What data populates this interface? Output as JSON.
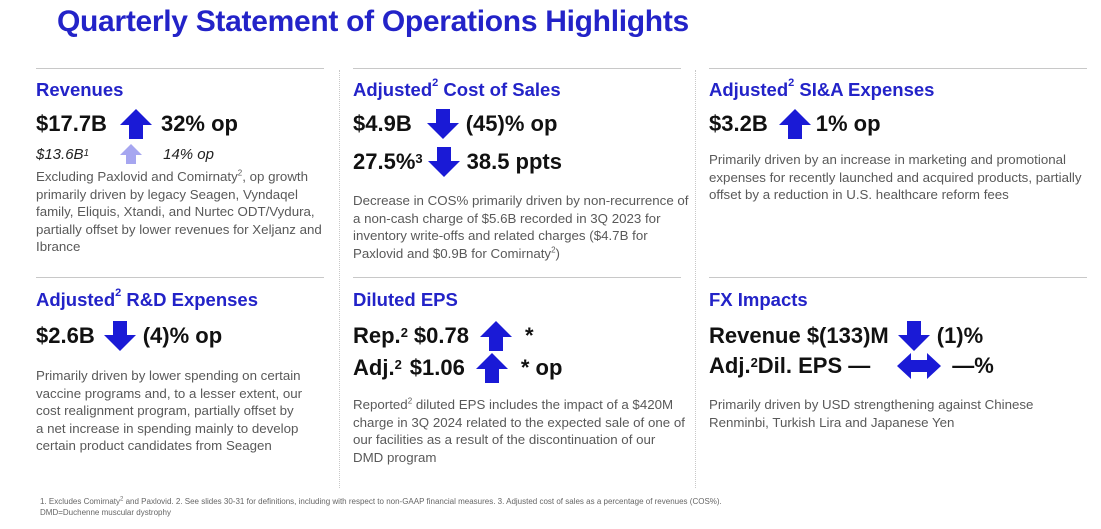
{
  "title": "Quarterly Statement of Operations Highlights",
  "colors": {
    "accent": "#2323c8",
    "arrow": "#1a1ad6",
    "arrow_light": "#a6a6f0"
  },
  "revenues": {
    "heading": "Revenues",
    "value": "$17.7B",
    "change": "32% op",
    "sub_value": "$13.6B",
    "sub_sup": "1",
    "sub_change": "14% op",
    "body_1": "Excluding Paxlovid and Comirnaty",
    "body_sup": "2",
    "body_2": ", op growth primarily driven by legacy Seagen, Vyndaqel family, Eliquis, Xtandi, and Nurtec ODT/Vydura, partially offset by lower revenues for Xeljanz and Ibrance",
    "arrow": "up-arrow-icon",
    "sub_arrow": "up-arrow-light-icon"
  },
  "cos": {
    "heading": "Adjusted",
    "heading_sup": "2",
    "heading_rest": " Cost of Sales",
    "value": "$4.9B",
    "change": "(45)% op",
    "ratio": "27.5%",
    "ratio_sup": "3",
    "ratio_change": "38.5 ppts",
    "body_1": "Decrease in COS% primarily driven by non-recurrence of a non-cash charge of $5.6B recorded in 3Q 2023 for inventory write-offs and related charges ($4.7B for Paxlovid and $0.9B for Comirnaty",
    "body_sup": "2",
    "body_2": ")"
  },
  "sia": {
    "heading": "Adjusted",
    "heading_sup": "2",
    "heading_rest": " SI&A Expenses",
    "value": "$3.2B",
    "change": "1% op",
    "body": "Primarily driven by an increase in marketing and promotional expenses for recently launched and acquired products, partially offset by a reduction in U.S. healthcare reform fees"
  },
  "rd": {
    "heading": "Adjusted",
    "heading_sup": "2",
    "heading_rest": " R&D Expenses",
    "value": "$2.6B",
    "change": "(4)% op",
    "body": "Primarily driven by lower spending on certain vaccine programs and, to a lesser extent, our cost realignment program, partially offset by a net increase in spending mainly to develop certain product candidates from Seagen"
  },
  "eps": {
    "heading": "Diluted EPS",
    "rep_label": "Rep.",
    "rep_sup": "2",
    "rep_value": "$0.78",
    "rep_change": "*",
    "adj_label": "Adj.",
    "adj_sup": "2",
    "adj_value": "$1.06",
    "adj_change": "* op",
    "body_1": "Reported",
    "body_sup": "2",
    "body_2": " diluted EPS includes the impact of a $420M charge in 3Q 2024 related to the expected sale of one of our facilities as a result of the discontinuation of our DMD program"
  },
  "fx": {
    "heading": "FX Impacts",
    "rev_label": "Revenue $(133)M",
    "rev_change": "(1)%",
    "eps_label_1": "Adj.",
    "eps_sup": "2",
    "eps_label_2": " Dil. EPS —",
    "eps_change": "—%",
    "body": "Primarily driven by USD strengthening against Chinese Renminbi, Turkish Lira and Japanese Yen"
  },
  "footnote": {
    "line1_a": "1. Excludes Comirnaty",
    "line1_sup": "2",
    "line1_b": " and Paxlovid. 2.  See slides 30-31 for definitions, including with respect to non-GAAP financial measures. 3. Adjusted cost of sales as a percentage of revenues (COS%).",
    "line2": "DMD=Duchenne muscular dystrophy"
  }
}
